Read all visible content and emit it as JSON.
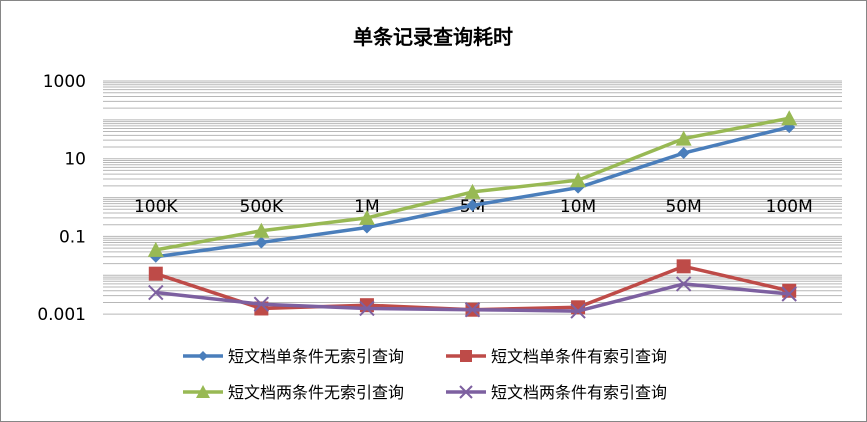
{
  "chart_data": {
    "type": "line",
    "title": "单条记录查询耗时",
    "xlabel": "",
    "ylabel": "",
    "y_scale": "log",
    "ylim": [
      0.0001,
      1000
    ],
    "y_ticks": [
      {
        "value": 1000,
        "label": "1000"
      },
      {
        "value": 10,
        "label": "10"
      },
      {
        "value": 0.1,
        "label": "0.1"
      },
      {
        "value": 0.001,
        "label": "0.001"
      }
    ],
    "categories": [
      "100K",
      "500K",
      "1M",
      "5M",
      "10M",
      "50M",
      "100M"
    ],
    "category_label_value": 0.6,
    "grid": true,
    "legend_position": "bottom",
    "series": [
      {
        "name": "短文档单条件无索引查询",
        "color": "#4a7ebb",
        "marker": "diamond",
        "values": [
          0.03,
          0.07,
          0.17,
          0.63,
          1.8,
          14,
          65
        ]
      },
      {
        "name": "短文档单条件有索引查询",
        "color": "#be4b48",
        "marker": "square",
        "values": [
          0.011,
          0.0014,
          0.0017,
          0.0013,
          0.0015,
          0.017,
          0.004
        ]
      },
      {
        "name": "短文档两条件无索引查询",
        "color": "#98b954",
        "marker": "triangle",
        "values": [
          0.045,
          0.14,
          0.3,
          1.4,
          2.8,
          33,
          110
        ]
      },
      {
        "name": "短文档两条件有索引查询",
        "color": "#7d60a0",
        "marker": "x",
        "values": [
          0.0036,
          0.0018,
          0.0014,
          0.0013,
          0.0012,
          0.006,
          0.0033
        ]
      }
    ]
  }
}
